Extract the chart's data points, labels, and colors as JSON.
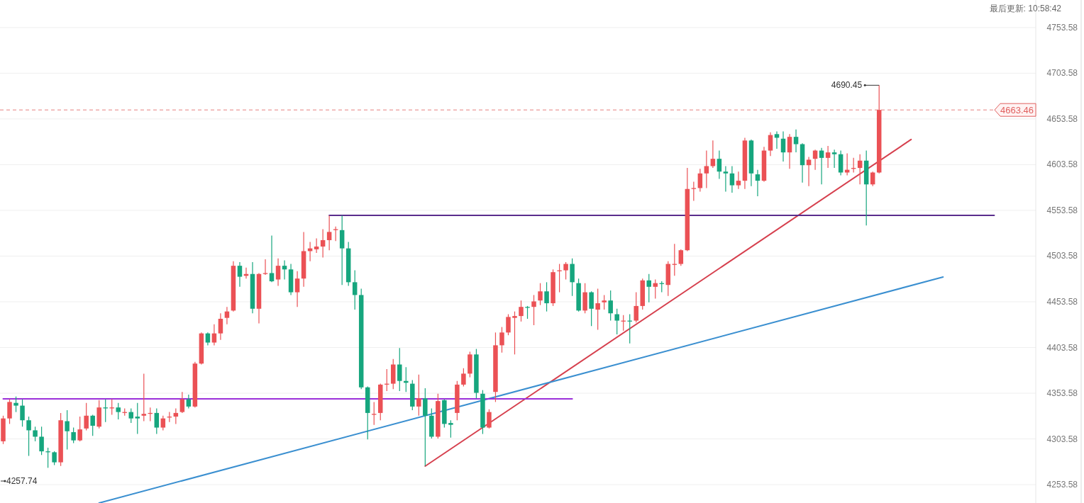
{
  "chart_data": {
    "type": "candlestick",
    "categories": [
      null,
      null,
      null,
      null,
      null,
      null,
      null,
      null,
      null,
      null,
      null,
      null,
      null,
      null,
      null,
      null,
      null,
      null,
      null,
      null,
      null,
      null,
      null,
      null,
      null,
      null,
      null,
      null,
      null,
      null,
      null,
      null,
      null,
      null,
      null,
      null,
      null,
      null,
      null,
      null,
      null,
      null,
      null,
      null,
      null,
      null,
      null,
      null,
      null,
      null,
      null,
      null,
      null,
      null,
      null,
      null,
      null,
      null,
      null,
      null,
      null,
      null,
      null,
      null,
      null,
      null,
      null,
      null,
      null,
      null,
      null,
      null,
      null,
      null,
      null,
      null,
      null,
      null,
      null,
      null,
      null,
      null,
      null,
      null,
      null,
      null,
      null,
      null,
      null,
      null,
      null,
      null,
      null,
      null,
      null,
      null,
      null,
      null,
      null,
      null,
      null,
      null,
      null,
      null,
      null,
      null,
      null,
      null,
      null,
      null,
      null,
      null,
      null,
      null,
      null,
      null,
      null,
      null,
      null,
      null,
      null,
      null,
      null,
      null,
      null,
      null,
      null,
      null,
      null,
      null,
      null,
      null,
      null,
      null,
      null,
      null,
      null,
      null,
      null,
      null,
      null,
      null,
      null,
      null,
      null,
      null,
      null,
      null,
      null,
      null,
      null,
      null,
      null,
      null,
      null,
      null,
      null,
      null,
      null,
      null,
      null,
      null
    ],
    "ohlc": [
      [
        4301,
        4329,
        4298,
        4326
      ],
      [
        4326,
        4347,
        4320,
        4344
      ],
      [
        4343,
        4350,
        4333,
        4340
      ],
      [
        4340,
        4347,
        4317,
        4324
      ],
      [
        4324,
        4328,
        4285,
        4313
      ],
      [
        4313,
        4317,
        4301,
        4306
      ],
      [
        4306,
        4317,
        4286,
        4290
      ],
      [
        4290,
        4294,
        4272,
        4289
      ],
      [
        4289,
        4290,
        4275,
        4278
      ],
      [
        4278,
        4332,
        4274,
        4324
      ],
      [
        4323,
        4335,
        4292,
        4312
      ],
      [
        4311,
        4316,
        4299,
        4302
      ],
      [
        4302,
        4328,
        4301,
        4314
      ],
      [
        4315,
        4343,
        4313,
        4329
      ],
      [
        4329,
        4330,
        4307,
        4318
      ],
      [
        4317,
        4346,
        4315,
        4338
      ],
      [
        4338,
        4347,
        4322,
        4337
      ],
      [
        4337,
        4347,
        4330,
        4338
      ],
      [
        4338,
        4343,
        4325,
        4333
      ],
      [
        4332,
        4337,
        4329,
        4333
      ],
      [
        4333,
        4337,
        4321,
        4326
      ],
      [
        4328,
        4343,
        4309,
        4326
      ],
      [
        4329,
        4375,
        4323,
        4331
      ],
      [
        4331,
        4338,
        4323,
        4332
      ],
      [
        4332,
        4337,
        4309,
        4316
      ],
      [
        4316,
        4329,
        4313,
        4326
      ],
      [
        4327,
        4333,
        4322,
        4328
      ],
      [
        4328,
        4337,
        4320,
        4332
      ],
      [
        4333,
        4355,
        4332,
        4347
      ],
      [
        4347,
        4352,
        4337,
        4339
      ],
      [
        4339,
        4388,
        4338,
        4386
      ],
      [
        4386,
        4420,
        4385,
        4419
      ],
      [
        4419,
        4420,
        4406,
        4409
      ],
      [
        4409,
        4429,
        4406,
        4419
      ],
      [
        4419,
        4441,
        4412,
        4435
      ],
      [
        4436,
        4448,
        4429,
        4443
      ],
      [
        4444,
        4498,
        4443,
        4493
      ],
      [
        4493,
        4497,
        4470,
        4481
      ],
      [
        4482,
        4491,
        4479,
        4484
      ],
      [
        4484,
        4497,
        4441,
        4446
      ],
      [
        4446,
        4485,
        4430,
        4484
      ],
      [
        4484,
        4500,
        4483,
        4485
      ],
      [
        4485,
        4526,
        4475,
        4476
      ],
      [
        4478,
        4501,
        4471,
        4493
      ],
      [
        4493,
        4499,
        4478,
        4489
      ],
      [
        4489,
        4495,
        4461,
        4464
      ],
      [
        4464,
        4487,
        4448,
        4479
      ],
      [
        4479,
        4530,
        4470,
        4509
      ],
      [
        4509,
        4519,
        4498,
        4512
      ],
      [
        4511,
        4523,
        4507,
        4514
      ],
      [
        4514,
        4533,
        4502,
        4521
      ],
      [
        4521,
        4548,
        4510,
        4530
      ],
      [
        4532,
        4536,
        4520,
        4533
      ],
      [
        4532,
        4548,
        4472,
        4512
      ],
      [
        4512,
        4519,
        4471,
        4475
      ],
      [
        4475,
        4488,
        4445,
        4461
      ],
      [
        4461,
        4468,
        4358,
        4360
      ],
      [
        4360,
        4361,
        4303,
        4332
      ],
      [
        4330,
        4344,
        4319,
        4331
      ],
      [
        4332,
        4364,
        4324,
        4363
      ],
      [
        4363,
        4380,
        4356,
        4364
      ],
      [
        4364,
        4391,
        4358,
        4385
      ],
      [
        4385,
        4403,
        4356,
        4367
      ],
      [
        4367,
        4382,
        4355,
        4365
      ],
      [
        4364,
        4368,
        4335,
        4339
      ],
      [
        4339,
        4374,
        4329,
        4348
      ],
      [
        4348,
        4359,
        4274,
        4329
      ],
      [
        4329,
        4337,
        4304,
        4306
      ],
      [
        4306,
        4353,
        4304,
        4345
      ],
      [
        4346,
        4347,
        4316,
        4320
      ],
      [
        4321,
        4324,
        4305,
        4319
      ],
      [
        4332,
        4367,
        4324,
        4363
      ],
      [
        4363,
        4381,
        4361,
        4375
      ],
      [
        4375,
        4399,
        4371,
        4396
      ],
      [
        4396,
        4402,
        4348,
        4354
      ],
      [
        4353,
        4357,
        4309,
        4316
      ],
      [
        4316,
        4336,
        4315,
        4333
      ],
      [
        4355,
        4420,
        4344,
        4406
      ],
      [
        4406,
        4426,
        4398,
        4420
      ],
      [
        4420,
        4440,
        4417,
        4437
      ],
      [
        4436,
        4443,
        4396,
        4438
      ],
      [
        4438,
        4455,
        4432,
        4448
      ],
      [
        4448,
        4449,
        4435,
        4447
      ],
      [
        4448,
        4461,
        4428,
        4454
      ],
      [
        4455,
        4474,
        4450,
        4465
      ],
      [
        4465,
        4475,
        4443,
        4452
      ],
      [
        4452,
        4489,
        4449,
        4486
      ],
      [
        4487,
        4495,
        4464,
        4488
      ],
      [
        4488,
        4497,
        4478,
        4495
      ],
      [
        4495,
        4501,
        4460,
        4475
      ],
      [
        4474,
        4479,
        4443,
        4444
      ],
      [
        4444,
        4474,
        4441,
        4464
      ],
      [
        4464,
        4465,
        4427,
        4446
      ],
      [
        4445,
        4468,
        4423,
        4452
      ],
      [
        4453,
        4461,
        4445,
        4455
      ],
      [
        4455,
        4466,
        4433,
        4441
      ],
      [
        4440,
        4446,
        4418,
        4433
      ],
      [
        4432,
        4439,
        4422,
        4433
      ],
      [
        4433,
        4440,
        4408,
        4432
      ],
      [
        4433,
        4464,
        4431,
        4449
      ],
      [
        4449,
        4479,
        4445,
        4477
      ],
      [
        4477,
        4484,
        4453,
        4470
      ],
      [
        4470,
        4478,
        4457,
        4474
      ],
      [
        4474,
        4476,
        4464,
        4473
      ],
      [
        4472,
        4498,
        4460,
        4495
      ],
      [
        4494,
        4517,
        4482,
        4495
      ],
      [
        4495,
        4511,
        4493,
        4510
      ],
      [
        4510,
        4600,
        4509,
        4577
      ],
      [
        4577,
        4585,
        4564,
        4578
      ],
      [
        4578,
        4599,
        4574,
        4594
      ],
      [
        4594,
        4619,
        4578,
        4602
      ],
      [
        4602,
        4630,
        4600,
        4610
      ],
      [
        4610,
        4619,
        4588,
        4596
      ],
      [
        4596,
        4602,
        4574,
        4594
      ],
      [
        4594,
        4602,
        4573,
        4581
      ],
      [
        4581,
        4596,
        4577,
        4586
      ],
      [
        4586,
        4633,
        4577,
        4630
      ],
      [
        4630,
        4631,
        4580,
        4594
      ],
      [
        4593,
        4598,
        4569,
        4586
      ],
      [
        4586,
        4623,
        4585,
        4619
      ],
      [
        4619,
        4639,
        4613,
        4636
      ],
      [
        4637,
        4640,
        4621,
        4633
      ],
      [
        4632,
        4640,
        4607,
        4617
      ],
      [
        4617,
        4637,
        4599,
        4634
      ],
      [
        4634,
        4642,
        4617,
        4626
      ],
      [
        4626,
        4627,
        4584,
        4603
      ],
      [
        4603,
        4612,
        4580,
        4609
      ],
      [
        4610,
        4620,
        4598,
        4619
      ],
      [
        4619,
        4622,
        4582,
        4611
      ],
      [
        4611,
        4624,
        4600,
        4617
      ],
      [
        4617,
        4620,
        4600,
        4615
      ],
      [
        4615,
        4619,
        4592,
        4595
      ],
      [
        4595,
        4616,
        4592,
        4598
      ],
      [
        4599,
        4611,
        4595,
        4600
      ],
      [
        4600,
        4615,
        4582,
        4608
      ],
      [
        4608,
        4619,
        4537,
        4582
      ],
      [
        4582,
        4596,
        4580,
        4595
      ],
      [
        4595,
        4690.45,
        4594,
        4663.46
      ],
      null,
      null,
      null,
      null,
      null,
      null,
      null,
      null,
      null,
      null,
      null,
      null,
      null,
      null,
      null,
      null,
      null,
      null,
      null,
      null,
      null,
      null,
      null,
      null
    ],
    "colors": [
      "#eb5155",
      "#eb5155",
      "#16a67e",
      "#16a67e",
      "#16a67e",
      "#16a67e",
      "#16a67e",
      "#16a67e",
      "#16a67e",
      "#eb5155",
      "#16a67e",
      "#16a67e",
      "#eb5155",
      "#eb5155",
      "#16a67e",
      "#eb5155",
      "#16a67e",
      "#eb5155",
      "#16a67e",
      "#eb5155",
      "#16a67e",
      "#16a67e",
      "#eb5155",
      "#eb5155",
      "#16a67e",
      "#eb5155",
      "#eb5155",
      "#eb5155",
      "#eb5155",
      "#16a67e",
      "#eb5155",
      "#eb5155",
      "#16a67e",
      "#eb5155",
      "#eb5155",
      "#eb5155",
      "#eb5155",
      "#16a67e",
      "#eb5155",
      "#16a67e",
      "#eb5155",
      "#eb5155",
      "#16a67e",
      "#eb5155",
      "#16a67e",
      "#16a67e",
      "#eb5155",
      "#eb5155",
      "#eb5155",
      "#eb5155",
      "#eb5155",
      "#eb5155",
      "#eb5155",
      "#16a67e",
      "#16a67e",
      "#16a67e",
      "#16a67e",
      "#16a67e",
      "#eb5155",
      "#eb5155",
      "#eb5155",
      "#eb5155",
      "#16a67e",
      "#16a67e",
      "#16a67e",
      "#eb5155",
      "#16a67e",
      "#16a67e",
      "#eb5155",
      "#16a67e",
      "#16a67e",
      "#eb5155",
      "#eb5155",
      "#eb5155",
      "#16a67e",
      "#16a67e",
      "#eb5155",
      "#eb5155",
      "#eb5155",
      "#eb5155",
      "#eb5155",
      "#eb5155",
      "#16a67e",
      "#eb5155",
      "#eb5155",
      "#16a67e",
      "#eb5155",
      "#eb5155",
      "#eb5155",
      "#16a67e",
      "#16a67e",
      "#eb5155",
      "#16a67e",
      "#eb5155",
      "#eb5155",
      "#16a67e",
      "#16a67e",
      "#eb5155",
      "#16a67e",
      "#eb5155",
      "#eb5155",
      "#16a67e",
      "#eb5155",
      "#16a67e",
      "#eb5155",
      "#eb5155",
      "#eb5155",
      "#eb5155",
      "#eb5155",
      "#eb5155",
      "#eb5155",
      "#eb5155",
      "#16a67e",
      "#16a67e",
      "#16a67e",
      "#eb5155",
      "#eb5155",
      "#16a67e",
      "#16a67e",
      "#eb5155",
      "#eb5155",
      "#16a67e",
      "#16a67e",
      "#eb5155",
      "#16a67e",
      "#16a67e",
      "#eb5155",
      "#eb5155",
      "#16a67e",
      "#eb5155",
      "#16a67e",
      "#16a67e",
      "#eb5155",
      "#eb5155",
      "#eb5155",
      "#16a67e",
      "#eb5155",
      "#eb5155",
      null,
      null,
      null,
      null,
      null,
      null,
      null,
      null,
      null,
      null,
      null,
      null,
      null,
      null,
      null,
      null,
      null,
      null,
      null,
      null,
      null,
      null,
      null,
      null
    ],
    "series": [
      {
        "type": "line",
        "color": "#d6404e",
        "values": [
          null,
          null,
          null,
          null,
          null,
          null,
          null,
          null,
          null,
          null,
          null,
          null,
          null,
          null,
          null,
          null,
          null,
          null,
          null,
          null,
          null,
          null,
          null,
          null,
          null,
          null,
          null,
          null,
          null,
          null,
          null,
          null,
          null,
          null,
          null,
          null,
          null,
          null,
          null,
          null,
          null,
          null,
          null,
          null,
          null,
          null,
          null,
          null,
          null,
          null,
          null,
          null,
          null,
          null,
          null,
          null,
          null,
          null,
          null,
          null,
          null,
          null,
          null,
          null,
          null,
          null,
          4273.8,
          null,
          null,
          null,
          null,
          null,
          null,
          null,
          null,
          null,
          null,
          null,
          null,
          null,
          null,
          null,
          null,
          null,
          null,
          null,
          null,
          null,
          null,
          null,
          null,
          null,
          null,
          null,
          null,
          null,
          null,
          null,
          null,
          null,
          null,
          null,
          null,
          null,
          null,
          null,
          null,
          null,
          null,
          null,
          null,
          null,
          null,
          null,
          null,
          null,
          null,
          null,
          null,
          null,
          null,
          null,
          null,
          null,
          null,
          null,
          null,
          null,
          null,
          null,
          null,
          null,
          null,
          null,
          null,
          null,
          null,
          null,
          null,
          null,
          null,
          null,
          4631.1,
          null,
          null,
          null,
          null,
          null,
          null,
          null,
          null,
          null,
          null,
          null,
          null,
          null,
          null,
          null,
          null,
          null,
          null,
          null
        ]
      },
      {
        "type": "line",
        "color": "#3a8fd0",
        "values": [
          null,
          null,
          null,
          null,
          null,
          null,
          null,
          null,
          null,
          null,
          null,
          null,
          null,
          null,
          null,
          4233.5,
          null,
          null,
          null,
          null,
          null,
          null,
          null,
          null,
          null,
          null,
          null,
          null,
          null,
          null,
          null,
          null,
          null,
          null,
          null,
          null,
          null,
          null,
          null,
          null,
          null,
          null,
          null,
          null,
          null,
          null,
          null,
          null,
          null,
          null,
          null,
          null,
          null,
          null,
          null,
          null,
          null,
          null,
          null,
          null,
          null,
          null,
          null,
          null,
          null,
          null,
          null,
          null,
          null,
          null,
          null,
          null,
          null,
          null,
          null,
          null,
          null,
          null,
          null,
          null,
          null,
          null,
          null,
          null,
          null,
          null,
          null,
          null,
          null,
          null,
          null,
          null,
          null,
          null,
          null,
          null,
          null,
          null,
          null,
          null,
          null,
          null,
          null,
          null,
          null,
          null,
          null,
          null,
          null,
          null,
          null,
          null,
          null,
          null,
          null,
          null,
          null,
          null,
          null,
          null,
          null,
          null,
          null,
          null,
          null,
          null,
          null,
          null,
          null,
          null,
          null,
          null,
          null,
          null,
          null,
          null,
          null,
          null,
          null,
          null,
          null,
          null,
          null,
          null,
          null,
          null,
          null,
          4480.7,
          null,
          null,
          null,
          null,
          null,
          null,
          null,
          null,
          null,
          null,
          null,
          null,
          null,
          null
        ]
      },
      {
        "type": "line",
        "color": "#5a2d8c",
        "values": [
          null,
          null,
          null,
          null,
          null,
          null,
          null,
          null,
          null,
          null,
          null,
          null,
          null,
          null,
          null,
          null,
          null,
          null,
          null,
          null,
          null,
          null,
          null,
          null,
          null,
          null,
          null,
          null,
          null,
          null,
          null,
          null,
          null,
          null,
          null,
          null,
          null,
          null,
          null,
          null,
          null,
          null,
          null,
          null,
          null,
          null,
          null,
          null,
          null,
          null,
          null,
          4548.1,
          null,
          null,
          null,
          null,
          null,
          null,
          null,
          null,
          null,
          null,
          null,
          null,
          null,
          null,
          null,
          null,
          null,
          null,
          null,
          null,
          null,
          null,
          null,
          null,
          null,
          null,
          null,
          null,
          null,
          null,
          null,
          null,
          null,
          null,
          null,
          null,
          null,
          null,
          null,
          null,
          null,
          null,
          null,
          null,
          null,
          null,
          null,
          null,
          null,
          null,
          null,
          null,
          null,
          null,
          null,
          null,
          null,
          null,
          null,
          null,
          null,
          null,
          null,
          null,
          null,
          null,
          null,
          null,
          null,
          null,
          null,
          null,
          null,
          null,
          null,
          null,
          null,
          null,
          null,
          null,
          null,
          null,
          null,
          null,
          null,
          null,
          null,
          null,
          null,
          null,
          null,
          null,
          null,
          null,
          null,
          null,
          null,
          null,
          null,
          null,
          null,
          null,
          null,
          4548.1,
          null,
          null,
          null,
          null,
          null,
          null
        ]
      },
      {
        "type": "line",
        "color": "#9b30d9",
        "values": [
          4347.4,
          null,
          null,
          null,
          null,
          null,
          null,
          null,
          null,
          null,
          null,
          null,
          null,
          null,
          null,
          null,
          null,
          null,
          null,
          null,
          null,
          null,
          null,
          null,
          null,
          null,
          null,
          null,
          null,
          null,
          null,
          null,
          null,
          null,
          null,
          null,
          null,
          null,
          null,
          null,
          null,
          null,
          null,
          null,
          null,
          null,
          null,
          null,
          null,
          null,
          null,
          null,
          null,
          null,
          null,
          null,
          null,
          null,
          null,
          null,
          null,
          null,
          null,
          null,
          null,
          null,
          null,
          null,
          null,
          null,
          null,
          null,
          null,
          null,
          null,
          null,
          null,
          null,
          null,
          null,
          null,
          null,
          null,
          null,
          null,
          null,
          null,
          null,
          null,
          4347.4,
          null,
          null,
          null,
          null,
          null,
          null,
          null,
          null,
          null,
          null,
          null,
          null,
          null,
          null,
          null,
          null,
          null,
          null,
          null,
          null,
          null,
          null,
          null,
          null,
          null,
          null,
          null,
          null,
          null,
          null,
          null,
          null,
          null,
          null,
          null,
          null,
          null,
          null,
          null,
          null,
          null,
          null,
          null,
          null,
          null,
          null,
          null,
          null,
          null,
          null,
          null,
          null,
          null,
          null,
          null,
          null,
          null,
          null,
          null,
          null,
          null,
          null,
          null,
          null,
          null,
          null,
          null,
          null,
          null,
          null,
          null,
          null
        ]
      }
    ],
    "ylim": [
      4233.5,
      4783.7
    ],
    "yticks": [
      4253.58,
      4303.58,
      4353.58,
      4403.58,
      4453.58,
      4503.58,
      4553.58,
      4603.58,
      4653.58,
      4703.58,
      4753.58
    ],
    "ref_lines": [
      {
        "axis": "y",
        "value": 4663.46,
        "label": "4663.46",
        "color": "#e0605f",
        "line_style": "dashed"
      }
    ],
    "annotations": [
      "最后更新: 10:58:42",
      "4690.45",
      "4257.74"
    ],
    "grid": "y",
    "tick_labels": "y"
  }
}
